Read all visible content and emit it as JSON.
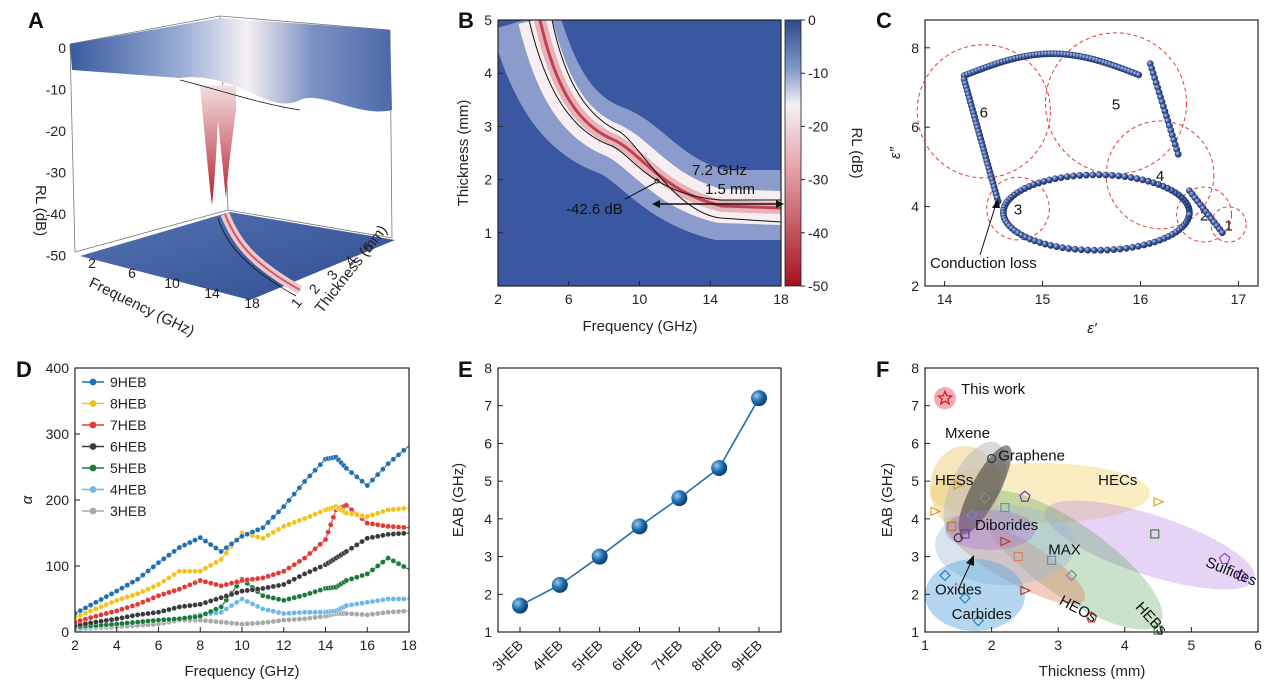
{
  "panels": {
    "A": {
      "label": "A",
      "zlabel": "RL (dB)",
      "xlabel": "Frequency (GHz)",
      "ylabel": "Thickness (mm)",
      "zticks": [
        "0",
        "-10",
        "-20",
        "-30",
        "-40",
        "-50"
      ],
      "xticks": [
        "2",
        "6",
        "10",
        "14",
        "18"
      ],
      "yticks": [
        "1",
        "2",
        "3",
        "4",
        "5"
      ]
    },
    "B": {
      "label": "B",
      "xlabel": "Frequency (GHz)",
      "ylabel": "Thickness (mm)",
      "cbar_label": "RL (dB)",
      "xticks": [
        "2",
        "6",
        "10",
        "14",
        "18"
      ],
      "yticks": [
        "1",
        "2",
        "3",
        "4",
        "5"
      ],
      "cbar_ticks": [
        "0",
        "-10",
        "-20",
        "-30",
        "-40",
        "-50"
      ],
      "annotations": {
        "min": "-42.6 dB",
        "eab": "7.2 GHz",
        "thick": "1.5 mm"
      }
    },
    "C": {
      "label": "C",
      "xlabel": "ε′",
      "ylabel": "ε″",
      "xticks": [
        "14",
        "15",
        "16",
        "17"
      ],
      "yticks": [
        "2",
        "4",
        "6",
        "8"
      ],
      "circle_labels": [
        "1",
        "2",
        "3",
        "4",
        "5",
        "6"
      ],
      "conduction": "Conduction loss"
    },
    "D": {
      "label": "D",
      "xlabel": "Frequency (GHz)",
      "ylabel": "α",
      "xticks": [
        "2",
        "4",
        "6",
        "8",
        "10",
        "12",
        "14",
        "16",
        "18"
      ],
      "yticks": [
        "0",
        "100",
        "200",
        "300",
        "400"
      ]
    },
    "E": {
      "label": "E",
      "ylabel": "EAB (GHz)",
      "yticks": [
        "1",
        "2",
        "3",
        "4",
        "5",
        "6",
        "7",
        "8"
      ]
    },
    "F": {
      "label": "F",
      "xlabel": "Thickness (mm)",
      "ylabel": "EAB (GHz)",
      "xticks": [
        "1",
        "2",
        "3",
        "4",
        "5",
        "6"
      ],
      "yticks": [
        "1",
        "2",
        "3",
        "4",
        "5",
        "6",
        "7",
        "8"
      ],
      "this_work": "This work"
    }
  },
  "chart_data": [
    {
      "panel": "A",
      "type": "surface3d",
      "title": "",
      "xlabel": "Frequency (GHz)",
      "ylabel": "Thickness (mm)",
      "zlabel": "RL (dB)",
      "xlim": [
        2,
        18
      ],
      "ylim": [
        1,
        5
      ],
      "zlim": [
        -55,
        0
      ]
    },
    {
      "panel": "B",
      "type": "heatmap",
      "xlabel": "Frequency (GHz)",
      "ylabel": "Thickness (mm)",
      "xlim": [
        2,
        18
      ],
      "ylim": [
        0,
        5
      ],
      "colorbar": {
        "label": "RL (dB)",
        "range": [
          -50,
          0
        ]
      },
      "min_rl": -42.6,
      "eab_GHz": 7.2,
      "eab_thickness_mm": 1.5
    },
    {
      "panel": "C",
      "type": "scatter",
      "xlabel": "ε′",
      "ylabel": "ε″",
      "xlim": [
        13.8,
        17.2
      ],
      "ylim": [
        2,
        8.7
      ],
      "circles": [
        {
          "label": "1",
          "x": 16.9,
          "y": 3.55
        },
        {
          "label": "2",
          "x": 16.65,
          "y": 3.8
        },
        {
          "label": "3",
          "x": 14.75,
          "y": 3.95
        },
        {
          "label": "4",
          "x": 16.2,
          "y": 4.8
        },
        {
          "label": "5",
          "x": 15.75,
          "y": 6.6
        },
        {
          "label": "6",
          "x": 14.4,
          "y": 6.4
        }
      ],
      "annotation": "Conduction loss"
    },
    {
      "panel": "D",
      "type": "line",
      "xlabel": "Frequency (GHz)",
      "ylabel": "α",
      "xlim": [
        2,
        18
      ],
      "ylim": [
        0,
        400
      ],
      "x": [
        2,
        3,
        4,
        5,
        6,
        7,
        8,
        9,
        10,
        11,
        12,
        13,
        14,
        14.5,
        15,
        16,
        17,
        18
      ],
      "series": [
        {
          "name": "9HEB",
          "color": "#1f6fb2",
          "values": [
            28,
            45,
            62,
            80,
            105,
            128,
            143,
            122,
            145,
            158,
            190,
            228,
            262,
            265,
            248,
            222,
            255,
            282
          ]
        },
        {
          "name": "8HEB",
          "color": "#f2c21b",
          "values": [
            22,
            35,
            48,
            58,
            72,
            92,
            92,
            110,
            150,
            142,
            160,
            172,
            185,
            190,
            180,
            175,
            185,
            188
          ]
        },
        {
          "name": "7HEB",
          "color": "#e53935",
          "values": [
            15,
            24,
            32,
            42,
            55,
            65,
            78,
            70,
            78,
            82,
            92,
            112,
            140,
            185,
            192,
            165,
            160,
            158
          ]
        },
        {
          "name": "6HEB",
          "color": "#3a3a3a",
          "values": [
            10,
            15,
            20,
            26,
            30,
            38,
            42,
            52,
            62,
            66,
            72,
            88,
            102,
            112,
            122,
            142,
            148,
            150
          ]
        },
        {
          "name": "5HEB",
          "color": "#1b7a3a",
          "values": [
            8,
            10,
            12,
            15,
            18,
            20,
            24,
            38,
            80,
            55,
            48,
            56,
            66,
            68,
            78,
            88,
            112,
            95
          ]
        },
        {
          "name": "4HEB",
          "color": "#6fb7e8",
          "values": [
            5,
            8,
            12,
            15,
            18,
            20,
            26,
            30,
            50,
            35,
            28,
            30,
            30,
            32,
            40,
            45,
            50,
            50
          ]
        },
        {
          "name": "3HEB",
          "color": "#a8a8a8",
          "values": [
            4,
            6,
            8,
            10,
            12,
            18,
            18,
            15,
            12,
            14,
            18,
            20,
            24,
            28,
            28,
            26,
            30,
            32
          ]
        }
      ]
    },
    {
      "panel": "E",
      "type": "line",
      "ylabel": "EAB (GHz)",
      "ylim": [
        1,
        8
      ],
      "categories": [
        "3HEB",
        "4HEB",
        "5HEB",
        "6HEB",
        "7HEB",
        "8HEB",
        "9HEB"
      ],
      "values": [
        1.7,
        2.25,
        3.0,
        3.8,
        4.55,
        5.35,
        7.2
      ]
    },
    {
      "panel": "F",
      "type": "scatter",
      "xlabel": "Thickness (mm)",
      "ylabel": "EAB (GHz)",
      "xlim": [
        1,
        6
      ],
      "ylim": [
        1,
        8
      ],
      "this_work": {
        "label": "This work",
        "x": 1.5,
        "y": 7.2
      },
      "groups": [
        {
          "name": "Mxene",
          "color": "#8a8a8a",
          "x": 1.8,
          "y": 4.6
        },
        {
          "name": "Graphene",
          "color": "#333333",
          "x": 2.0,
          "y": 5.6
        },
        {
          "name": "HESs",
          "color": "#b8860b",
          "x": 1.45,
          "y": 5.0
        },
        {
          "name": "HECs",
          "color": "#e0a020",
          "x": 3.5,
          "y": 4.95
        },
        {
          "name": "Diborides",
          "color": "#7b2fa8",
          "x": 2.3,
          "y": 3.9
        },
        {
          "name": "MAX",
          "color": "#6a8fb5",
          "x": 2.9,
          "y": 3.2
        },
        {
          "name": "Sulfides",
          "color": "#8e3ad6",
          "x": 5.3,
          "y": 2.8
        },
        {
          "name": "Oxides",
          "color": "#333333",
          "x": 1.6,
          "y": 2.8
        },
        {
          "name": "HEOs",
          "color": "#c0392b",
          "x": 2.9,
          "y": 2.2
        },
        {
          "name": "HEBs",
          "color": "#3a7d3a",
          "x": 4.3,
          "y": 2.6
        },
        {
          "name": "Carbides",
          "color": "#2a7fc0",
          "x": 1.7,
          "y": 1.6
        }
      ]
    }
  ]
}
